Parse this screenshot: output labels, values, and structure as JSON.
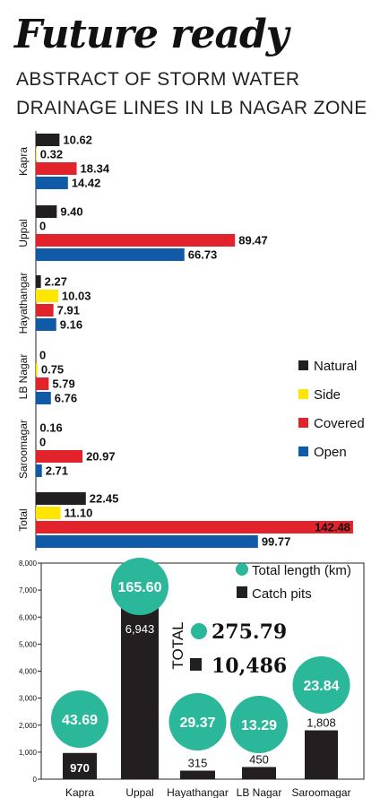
{
  "headline": "Future ready",
  "subtitle_line1": "ABSTRACT OF STORM WATER",
  "subtitle_line2": "DRAINAGE LINES IN LB NAGAR ZONE",
  "colors": {
    "natural": "#231f20",
    "side": "#ffe600",
    "covered": "#e3232c",
    "open": "#0f5ba8",
    "circle": "#2bb79a",
    "pit": "#231f20"
  },
  "chart_data": [
    {
      "type": "bar",
      "orientation": "horizontal",
      "categories": [
        "Kapra",
        "Uppal",
        "Hayathangar",
        "LB Nagar",
        "Saroomagar",
        "Total"
      ],
      "series": [
        {
          "name": "Natural",
          "values": [
            10.62,
            9.4,
            2.27,
            0,
            0.16,
            22.45
          ],
          "labels": [
            "10.62",
            "9.40",
            "2.27",
            "0",
            "0.16",
            "22.45"
          ]
        },
        {
          "name": "Side",
          "values": [
            0.32,
            0,
            10.03,
            0.75,
            0,
            11.1
          ],
          "labels": [
            "0.32",
            "0",
            "10.03",
            "0.75",
            "0",
            "11.10"
          ]
        },
        {
          "name": "Covered",
          "values": [
            18.34,
            89.47,
            7.91,
            5.79,
            20.97,
            142.48
          ],
          "labels": [
            "18.34",
            "89.47",
            "7.91",
            "5.79",
            "20.97",
            "142.48"
          ]
        },
        {
          "name": "Open",
          "values": [
            14.42,
            66.73,
            9.16,
            6.76,
            2.71,
            99.77
          ],
          "labels": [
            "14.42",
            "66.73",
            "9.16",
            "6.76",
            "2.71",
            "99.77"
          ]
        }
      ],
      "legend_position": "right"
    },
    {
      "type": "bar",
      "categories": [
        "Kapra",
        "Uppal",
        "Hayathangar",
        "LB Nagar",
        "Saroomagar"
      ],
      "series": [
        {
          "name": "Catch pits",
          "values": [
            970,
            6943,
            315,
            450,
            1808
          ],
          "labels": [
            "970",
            "6,943",
            "315",
            "450",
            "1,808"
          ]
        },
        {
          "name": "Total length (km)",
          "values": [
            43.69,
            165.6,
            29.37,
            13.29,
            23.84
          ],
          "labels": [
            "43.69",
            "165.60",
            "29.37",
            "13.29",
            "23.84"
          ]
        }
      ],
      "ylim": [
        0,
        8000
      ],
      "yticks": [
        "0",
        "1,000",
        "2,000",
        "3,000",
        "4,000",
        "5,000",
        "6,000",
        "7,000",
        "8,000"
      ],
      "grid": false,
      "legend_position": "top-right",
      "total_label": "TOTAL",
      "totals": {
        "length": "275.79",
        "catch_pits": "10,486"
      }
    }
  ]
}
